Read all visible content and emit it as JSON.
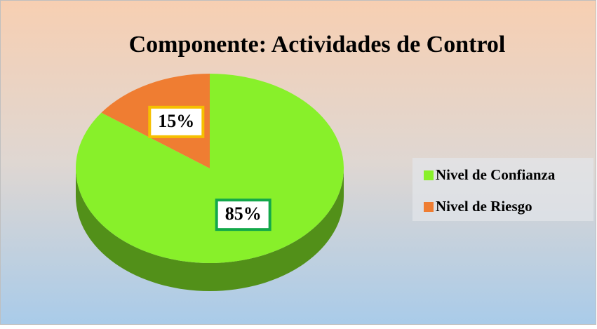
{
  "chart_data": {
    "type": "pie",
    "title": "Componente: Actividades de Control",
    "categories": [
      "Nivel de Confianza",
      "Nivel de Riesgo"
    ],
    "values": [
      85,
      15
    ],
    "value_labels": [
      "85%",
      "15%"
    ],
    "colors": [
      "#88f02a",
      "#ef7d32"
    ],
    "label_borders": [
      "#13a84a",
      "#f6c000"
    ],
    "legend": "right"
  }
}
